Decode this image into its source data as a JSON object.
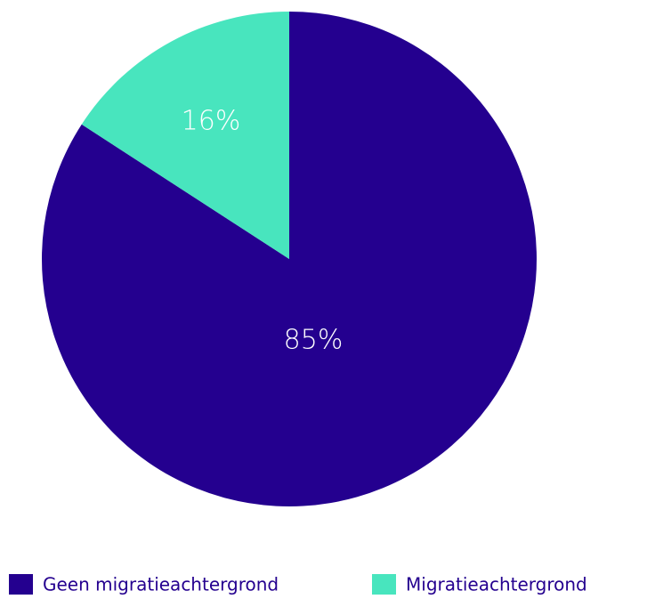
{
  "chart_data": {
    "type": "pie",
    "categories": [
      "Geen migratieachtergrond",
      "Migratieachtergrond"
    ],
    "values": [
      85,
      16
    ],
    "value_labels": [
      "85%",
      "16%"
    ],
    "colors": [
      "#24008f",
      "#48e5be"
    ],
    "legend": "bottom"
  }
}
